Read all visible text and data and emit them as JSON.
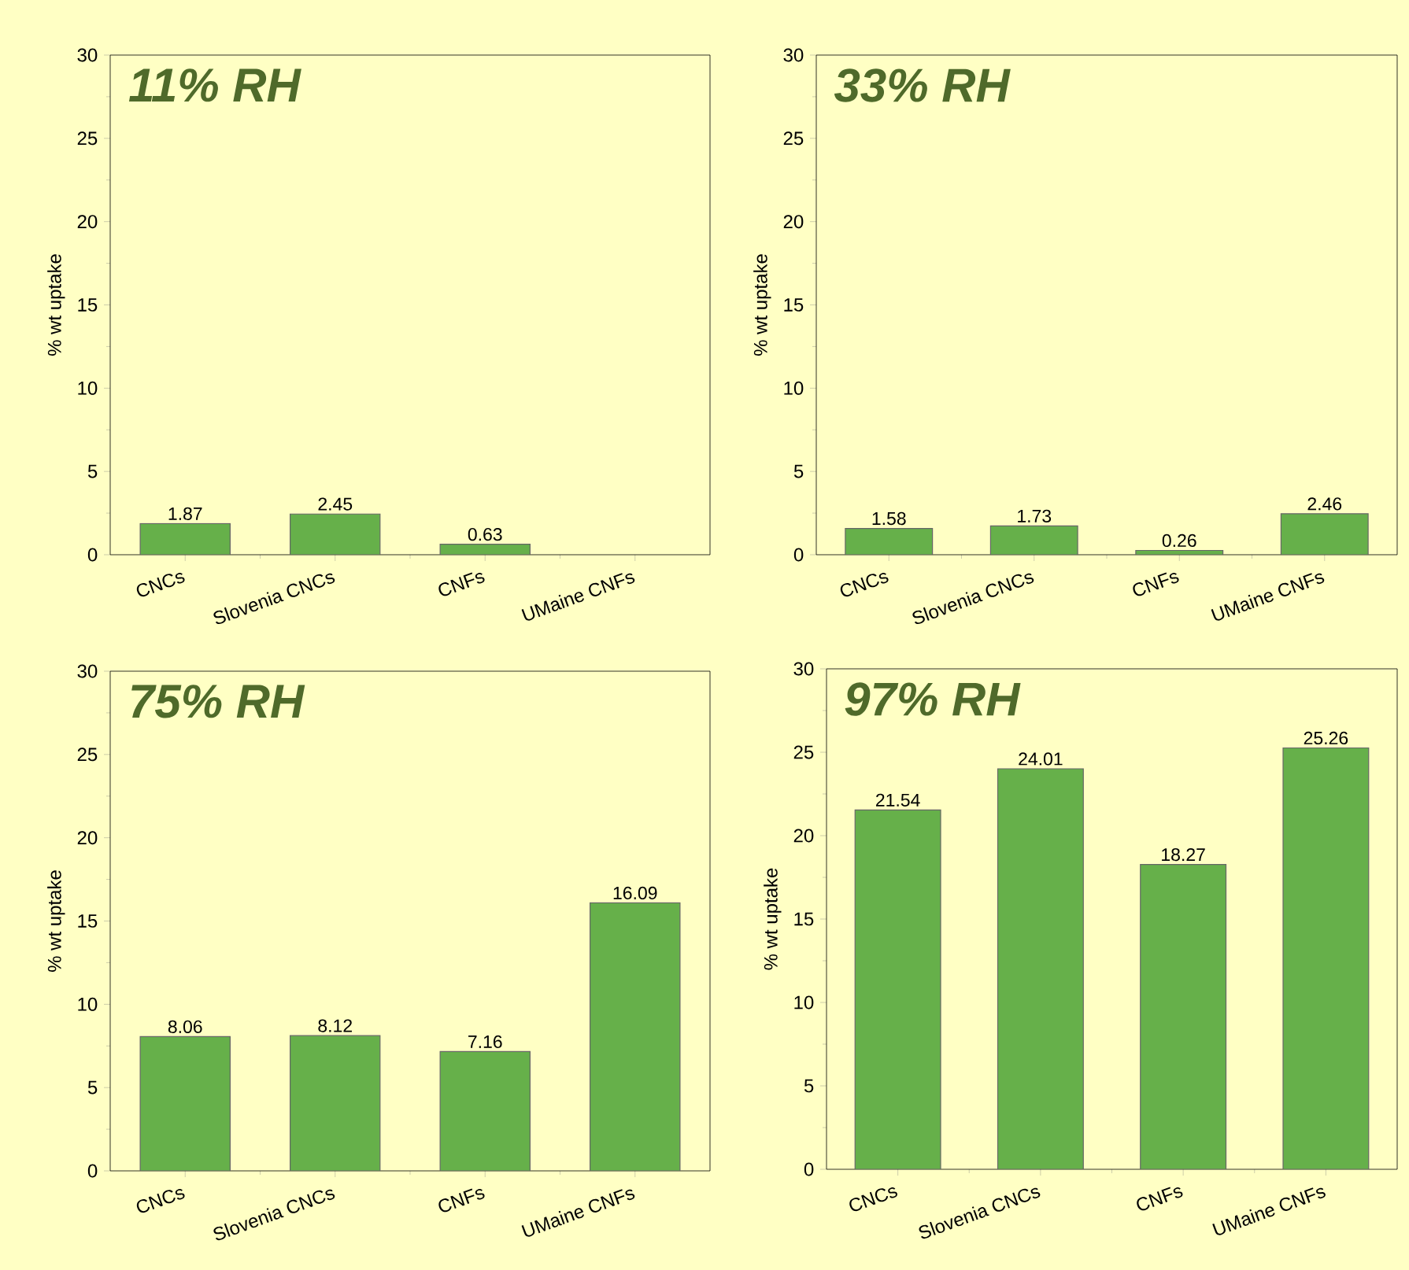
{
  "chart_data": [
    {
      "type": "bar",
      "title": "11% RH",
      "ylabel": "% wt uptake",
      "categories": [
        "CNCs",
        "Slovenia CNCs",
        "CNFs",
        "UMaine CNFs"
      ],
      "values": [
        1.87,
        2.45,
        0.63,
        null
      ],
      "color": "#66b04a",
      "ylim": [
        0,
        30
      ],
      "yticks": [
        0,
        5,
        10,
        15,
        20,
        25,
        30
      ],
      "data_labels": true
    },
    {
      "type": "bar",
      "title": "33% RH",
      "ylabel": "% wt uptake",
      "categories": [
        "CNCs",
        "Slovenia CNCs",
        "CNFs",
        "UMaine CNFs"
      ],
      "values": [
        1.58,
        1.73,
        0.26,
        2.46
      ],
      "color": "#66b04a",
      "ylim": [
        0,
        30
      ],
      "yticks": [
        0,
        5,
        10,
        15,
        20,
        25,
        30
      ],
      "data_labels": true
    },
    {
      "type": "bar",
      "title": "75% RH",
      "ylabel": "% wt uptake",
      "categories": [
        "CNCs",
        "Slovenia CNCs",
        "CNFs",
        "UMaine CNFs"
      ],
      "values": [
        8.06,
        8.12,
        7.16,
        16.09
      ],
      "color": "#66b04a",
      "ylim": [
        0,
        30
      ],
      "yticks": [
        0,
        5,
        10,
        15,
        20,
        25,
        30
      ],
      "data_labels": true
    },
    {
      "type": "bar",
      "title": "97% RH",
      "ylabel": "% wt uptake",
      "categories": [
        "CNCs",
        "Slovenia CNCs",
        "CNFs",
        "UMaine CNFs"
      ],
      "values": [
        21.54,
        24.01,
        18.27,
        25.26
      ],
      "color": "#66b04a",
      "ylim": [
        0,
        30
      ],
      "yticks": [
        0,
        5,
        10,
        15,
        20,
        25,
        30
      ],
      "data_labels": true
    }
  ]
}
